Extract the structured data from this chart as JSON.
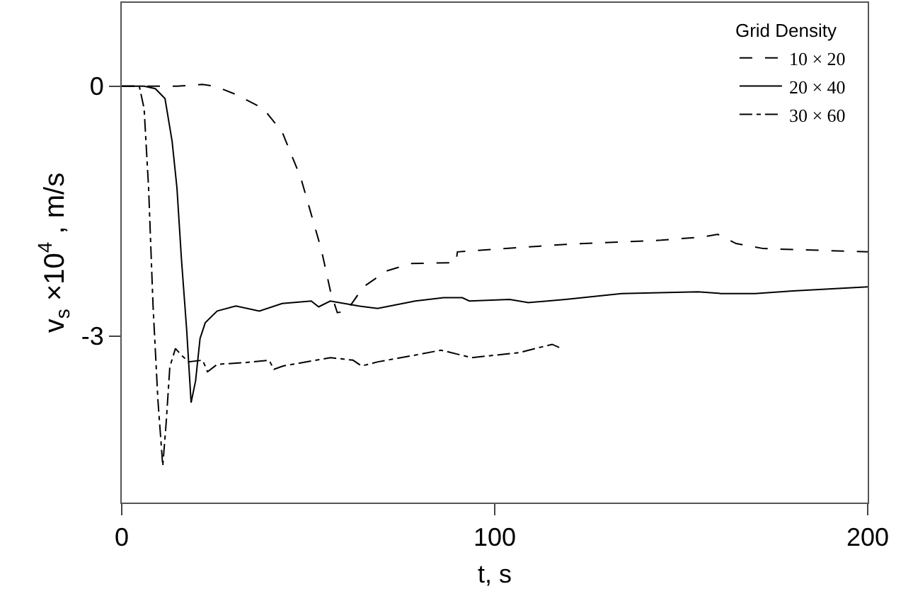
{
  "chart_data": {
    "type": "line",
    "xlabel": "t, s",
    "ylabel": "v$_{s}$ ×10$^{4}$ , m/s",
    "legend_title": "Grid Density",
    "xlim": [
      0,
      200
    ],
    "xticks": [
      0,
      100,
      200
    ],
    "ylim": [
      -5,
      1
    ],
    "yticks": [
      0,
      -3
    ],
    "grid": false,
    "legend": "top right",
    "marker": "none",
    "series": [
      {
        "name": "10 × 20",
        "color": "#000000",
        "line_style": "dashed",
        "x": [
          0,
          15,
          21.6,
          25,
          30.6,
          38,
          43,
          48,
          53.5,
          56,
          57.8,
          60.3,
          64.8,
          71,
          77.4,
          88.8,
          89.6,
          90,
          119,
          144.6,
          156,
          159.8,
          164.7,
          172,
          200
        ],
        "values": [
          0,
          0,
          0.02,
          0,
          -0.1,
          -0.27,
          -0.55,
          -1.1,
          -1.96,
          -2.47,
          -2.72,
          -2.7,
          -2.41,
          -2.22,
          -2.13,
          -2.12,
          -2.12,
          -1.99,
          -1.9,
          -1.85,
          -1.81,
          -1.78,
          -1.89,
          -1.95,
          -1.99
        ]
      },
      {
        "name": "20 × 40",
        "color": "#000000",
        "line_style": "solid",
        "x": [
          0,
          6,
          9,
          11.6,
          13.5,
          14.8,
          16,
          17.4,
          18.6,
          19.8,
          21,
          22.4,
          25.6,
          30.6,
          36.9,
          43,
          50.8,
          52.8,
          55.9,
          63.5,
          68.6,
          78.7,
          86.3,
          91.3,
          93.2,
          104,
          109,
          119,
          134,
          154.5,
          160.7,
          169.8,
          180,
          200
        ],
        "values": [
          0,
          0,
          -0.03,
          -0.15,
          -0.66,
          -1.22,
          -2.07,
          -2.92,
          -3.8,
          -3.54,
          -3.03,
          -2.84,
          -2.7,
          -2.64,
          -2.7,
          -2.61,
          -2.58,
          -2.65,
          -2.58,
          -2.64,
          -2.67,
          -2.58,
          -2.54,
          -2.54,
          -2.58,
          -2.56,
          -2.6,
          -2.56,
          -2.49,
          -2.47,
          -2.49,
          -2.49,
          -2.46,
          -2.41
        ]
      },
      {
        "name": "30 × 60",
        "color": "#000000",
        "line_style": "dashdot",
        "x": [
          0,
          4.7,
          6,
          7.2,
          8.4,
          9.7,
          11,
          11.9,
          12.9,
          14.4,
          16,
          17.9,
          21.7,
          23,
          25.6,
          33,
          39.5,
          40.8,
          43.3,
          56,
          62,
          64.3,
          68.7,
          78.6,
          85.6,
          93.8,
          106.5,
          115.4,
          117.9
        ],
        "values": [
          0,
          0,
          -0.27,
          -1.22,
          -2.64,
          -3.77,
          -4.56,
          -4.05,
          -3.37,
          -3.15,
          -3.23,
          -3.31,
          -3.29,
          -3.43,
          -3.34,
          -3.32,
          -3.29,
          -3.4,
          -3.36,
          -3.26,
          -3.29,
          -3.36,
          -3.31,
          -3.23,
          -3.17,
          -3.26,
          -3.2,
          -3.1,
          -3.15
        ]
      }
    ]
  }
}
